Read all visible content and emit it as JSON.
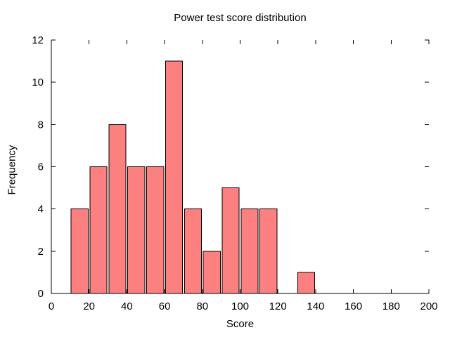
{
  "chart_data": {
    "type": "bar",
    "variant": "histogram",
    "title": "Power test score distribution",
    "xlabel": "Score",
    "ylabel": "Frequency",
    "xlim": [
      0,
      200
    ],
    "ylim": [
      0,
      12
    ],
    "xticks": [
      0,
      20,
      40,
      60,
      80,
      100,
      120,
      140,
      160,
      180,
      200
    ],
    "yticks": [
      0,
      2,
      4,
      6,
      8,
      10,
      12
    ],
    "grid": false,
    "legend": null,
    "tick_style": "inward, mirrored on top and right",
    "border": "left and bottom only",
    "bin_width": 10,
    "bar_width_frac": 0.9,
    "bins": [
      {
        "range": [
          10,
          20
        ],
        "count": 4
      },
      {
        "range": [
          20,
          30
        ],
        "count": 6
      },
      {
        "range": [
          30,
          40
        ],
        "count": 8
      },
      {
        "range": [
          40,
          50
        ],
        "count": 6
      },
      {
        "range": [
          50,
          60
        ],
        "count": 6
      },
      {
        "range": [
          60,
          70
        ],
        "count": 11
      },
      {
        "range": [
          70,
          80
        ],
        "count": 4
      },
      {
        "range": [
          80,
          90
        ],
        "count": 2
      },
      {
        "range": [
          90,
          100
        ],
        "count": 5
      },
      {
        "range": [
          100,
          110
        ],
        "count": 4
      },
      {
        "range": [
          110,
          120
        ],
        "count": 4
      },
      {
        "range": [
          120,
          130
        ],
        "count": 0
      },
      {
        "range": [
          130,
          140
        ],
        "count": 1
      }
    ],
    "colors": {
      "bar_fill": "#fc8080",
      "bar_stroke": "#000000",
      "axis": "#000000",
      "text": "#000000",
      "background": "#ffffff"
    }
  }
}
